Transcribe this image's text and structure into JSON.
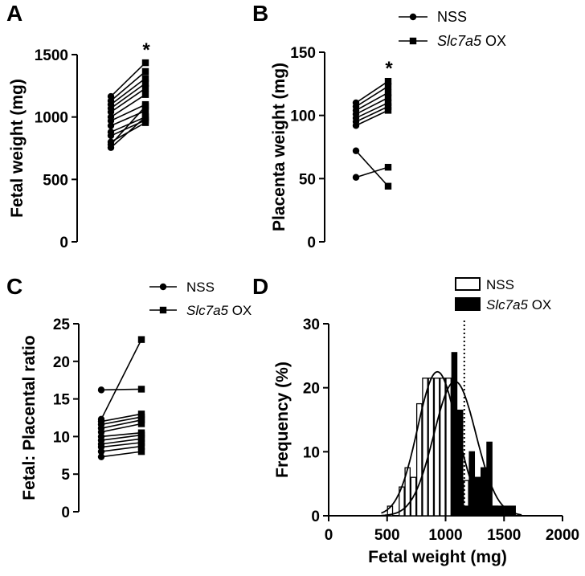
{
  "chart_data": [
    {
      "id": "A",
      "type": "line",
      "panel_label": "A",
      "ylabel": "Fetal weight (mg)",
      "ylim": [
        0,
        1500
      ],
      "yticks": [
        0,
        500,
        1000,
        1500
      ],
      "significance": "*",
      "series": [
        {
          "name": "NSS",
          "marker": "circle",
          "values": [
            1165,
            1130,
            1100,
            1070,
            1040,
            1000,
            970,
            930,
            880,
            850,
            800,
            780,
            755
          ]
        },
        {
          "name": "Slc7a5 OX",
          "marker": "square",
          "values": [
            1435,
            1365,
            1310,
            1270,
            1230,
            1180,
            1100,
            1050,
            1000,
            975,
            955,
            1085,
            1000
          ]
        }
      ]
    },
    {
      "id": "B",
      "type": "line",
      "panel_label": "B",
      "ylabel": "Placenta weight (mg)",
      "ylim": [
        0,
        150
      ],
      "yticks": [
        0,
        50,
        100,
        150
      ],
      "significance": "*",
      "series": [
        {
          "name": "NSS",
          "marker": "circle",
          "values": [
            110,
            107,
            104,
            101,
            98,
            95,
            92,
            72,
            51
          ]
        },
        {
          "name": "Slc7a5 OX",
          "marker": "square",
          "values": [
            127,
            123,
            118,
            114,
            110,
            107,
            104,
            44,
            59
          ]
        }
      ]
    },
    {
      "id": "C",
      "type": "line",
      "panel_label": "C",
      "ylabel": "Fetal: Placental ratio",
      "ylim": [
        0,
        25
      ],
      "yticks": [
        0,
        5,
        10,
        15,
        20,
        25
      ],
      "series": [
        {
          "name": "NSS",
          "marker": "circle",
          "values": [
            16.2,
            12.3,
            12.0,
            11.6,
            11.1,
            10.6,
            10.0,
            9.5,
            9.0,
            8.6,
            8.0,
            7.3
          ]
        },
        {
          "name": "Slc7a5 OX",
          "marker": "square",
          "values": [
            16.3,
            22.9,
            13.0,
            12.6,
            12.2,
            11.7,
            10.5,
            10.2,
            9.7,
            9.2,
            8.7,
            8.0
          ]
        }
      ]
    },
    {
      "id": "D",
      "type": "bar",
      "panel_label": "D",
      "xlabel": "Fetal weight (mg)",
      "ylabel": "Frequency (%)",
      "xlim": [
        0,
        2000
      ],
      "ylim": [
        0,
        30
      ],
      "xticks": [
        0,
        500,
        1000,
        1500,
        2000
      ],
      "yticks": [
        0,
        10,
        20,
        30
      ],
      "bin_width": 50,
      "threshold_line_x": 1160,
      "series": [
        {
          "name": "NSS",
          "fill": "white",
          "bins": [
            500,
            600,
            650,
            700,
            750,
            800,
            850,
            900,
            950,
            1000,
            1050,
            1100,
            1150,
            1200,
            1350,
            1400
          ],
          "values": [
            1.5,
            4.5,
            7.5,
            6.0,
            17.5,
            21.5,
            21.5,
            21.5,
            21.5,
            21.5,
            7.5,
            5.5,
            5.5,
            9.0,
            1.5,
            1.5
          ]
        },
        {
          "name": "Slc7a5 OX",
          "fill": "black",
          "bins": [
            1050,
            1100,
            1150,
            1200,
            1250,
            1300,
            1350,
            1400,
            1450,
            1500,
            1550
          ],
          "values": [
            25.5,
            16.5,
            1.5,
            10.0,
            6.0,
            7.5,
            11.5,
            1.5,
            1.5,
            1.5,
            1.5
          ]
        }
      ],
      "fit_curves": [
        {
          "name": "NSS fit",
          "peak": 22.5,
          "mean": 930,
          "sd": 170
        },
        {
          "name": "Slc7a5 OX fit",
          "peak": 21.0,
          "mean": 1080,
          "sd": 180
        }
      ]
    }
  ],
  "legend_top": {
    "items": [
      {
        "label": "NSS",
        "italic_prefix": "",
        "suffix": "",
        "marker": "circle"
      },
      {
        "label": "Slc7a5 OX",
        "italic_prefix": "Slc7a5",
        "suffix": " OX",
        "marker": "square"
      }
    ]
  },
  "legend_c": {
    "items": [
      {
        "label": "NSS",
        "italic_prefix": "",
        "suffix": "",
        "marker": "circle"
      },
      {
        "label": "Slc7a5 OX",
        "italic_prefix": "Slc7a5",
        "suffix": " OX",
        "marker": "square"
      }
    ]
  },
  "legend_d": {
    "items": [
      {
        "label": "NSS",
        "italic_prefix": "",
        "suffix": "",
        "swatch": "white"
      },
      {
        "label": "Slc7a5 OX",
        "italic_prefix": "Slc7a5",
        "suffix": " OX",
        "swatch": "black"
      }
    ]
  }
}
